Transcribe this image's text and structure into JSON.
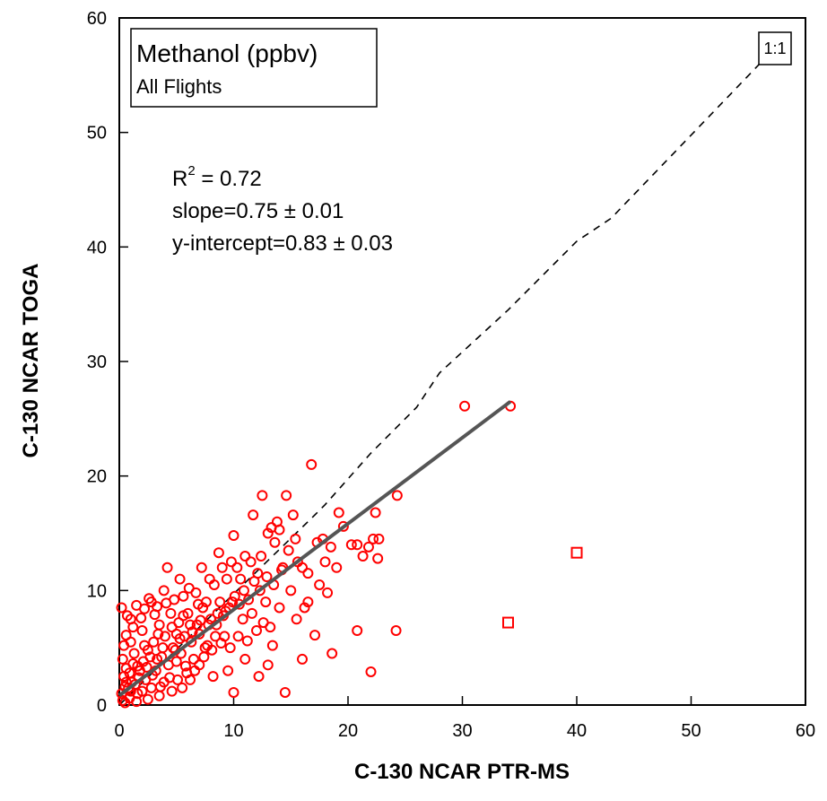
{
  "chart_data": {
    "type": "scatter",
    "title": "Methanol (ppbv)",
    "subtitle": "All Flights",
    "xlabel": "C-130 NCAR PTR-MS",
    "ylabel": "C-130 NCAR TOGA",
    "xlim": [
      0,
      60
    ],
    "ylim": [
      0,
      60
    ],
    "xticks": [
      0,
      10,
      20,
      30,
      40,
      50,
      60
    ],
    "yticks": [
      0,
      10,
      20,
      30,
      40,
      50,
      60
    ],
    "grid": false,
    "stats": {
      "r2_label": "R",
      "r2_sup": "2",
      "r2_value": " = 0.72",
      "slope": "slope=0.75 ± 0.01",
      "intercept": "y-intercept=0.83 ± 0.03"
    },
    "one_to_one_label": "1:1",
    "fit_line": {
      "x": [
        0,
        34.2
      ],
      "y": [
        0.83,
        26.5
      ],
      "color": "#555555"
    },
    "one_to_one_line": {
      "x": [
        0,
        17,
        18,
        22,
        26,
        28,
        34,
        40,
        43,
        56
      ],
      "y": [
        0,
        16.5,
        17.5,
        22,
        26,
        29,
        34.5,
        40.5,
        42.5,
        56
      ],
      "color": "#000000"
    },
    "series": [
      {
        "marker": "circle",
        "color": "#ff0000",
        "points": [
          [
            0.2,
            8.5
          ],
          [
            0.6,
            6.1
          ],
          [
            1.0,
            7.5
          ],
          [
            1.5,
            8.7
          ],
          [
            2.2,
            8.4
          ],
          [
            2.8,
            9.0
          ],
          [
            3.3,
            8.6
          ],
          [
            3.9,
            10.0
          ],
          [
            4.2,
            12.0
          ],
          [
            4.8,
            9.2
          ],
          [
            5.3,
            11.0
          ],
          [
            5.0,
            6.2
          ],
          [
            5.6,
            9.5
          ],
          [
            6.1,
            10.2
          ],
          [
            6.7,
            9.8
          ],
          [
            7.2,
            12.0
          ],
          [
            7.6,
            9.0
          ],
          [
            7.9,
            11.0
          ],
          [
            8.3,
            10.5
          ],
          [
            8.7,
            13.3
          ],
          [
            9.0,
            12.0
          ],
          [
            9.4,
            11.0
          ],
          [
            9.8,
            12.5
          ],
          [
            10.0,
            14.8
          ],
          [
            10.3,
            12.0
          ],
          [
            10.6,
            11.0
          ],
          [
            11.0,
            13.0
          ],
          [
            11.5,
            12.5
          ],
          [
            11.7,
            16.6
          ],
          [
            12.1,
            11.5
          ],
          [
            12.4,
            13.0
          ],
          [
            12.5,
            18.3
          ],
          [
            13.0,
            15.0
          ],
          [
            13.3,
            15.5
          ],
          [
            13.6,
            14.2
          ],
          [
            13.8,
            16.0
          ],
          [
            14.0,
            15.3
          ],
          [
            14.3,
            12.0
          ],
          [
            14.6,
            18.3
          ],
          [
            14.8,
            13.5
          ],
          [
            15.2,
            16.6
          ],
          [
            15.4,
            14.5
          ],
          [
            16.0,
            12.0
          ],
          [
            16.5,
            11.5
          ],
          [
            16.8,
            21.0
          ],
          [
            17.3,
            14.2
          ],
          [
            17.8,
            14.5
          ],
          [
            18.5,
            13.8
          ],
          [
            19.0,
            12.0
          ],
          [
            19.2,
            16.8
          ],
          [
            19.6,
            15.6
          ],
          [
            20.3,
            14.0
          ],
          [
            20.8,
            14.0
          ],
          [
            21.3,
            13.0
          ],
          [
            21.8,
            13.8
          ],
          [
            22.2,
            14.5
          ],
          [
            22.4,
            16.8
          ],
          [
            22.6,
            12.8
          ],
          [
            22.7,
            14.5
          ],
          [
            24.3,
            18.3
          ],
          [
            30.2,
            26.1
          ],
          [
            34.2,
            26.1
          ],
          [
            18.2,
            9.8
          ],
          [
            17.1,
            6.1
          ],
          [
            18.6,
            4.5
          ],
          [
            20.8,
            6.5
          ],
          [
            24.2,
            6.5
          ],
          [
            22.0,
            2.9
          ],
          [
            14.5,
            1.1
          ],
          [
            12.2,
            2.5
          ],
          [
            10.0,
            1.1
          ],
          [
            13.0,
            3.5
          ],
          [
            16.0,
            4.0
          ],
          [
            15.5,
            7.5
          ],
          [
            16.2,
            8.5
          ],
          [
            13.4,
            5.2
          ],
          [
            12.0,
            6.5
          ],
          [
            11.0,
            4.0
          ],
          [
            9.5,
            3.0
          ],
          [
            8.2,
            2.5
          ],
          [
            8.5,
            7.0
          ],
          [
            7.5,
            5.0
          ],
          [
            14.0,
            8.5
          ],
          [
            15.0,
            10.0
          ],
          [
            16.5,
            9.0
          ],
          [
            17.5,
            10.5
          ],
          [
            18.0,
            12.5
          ],
          [
            12.8,
            9.0
          ],
          [
            11.6,
            8.0
          ],
          [
            10.8,
            7.5
          ],
          [
            9.2,
            6.0
          ],
          [
            7.0,
            3.5
          ],
          [
            6.2,
            2.2
          ],
          [
            5.5,
            1.5
          ],
          [
            4.6,
            1.2
          ],
          [
            3.5,
            0.8
          ],
          [
            2.5,
            0.5
          ],
          [
            1.5,
            0.3
          ],
          [
            0.5,
            0.2
          ],
          [
            0.2,
            1.0
          ],
          [
            0.4,
            2.5
          ],
          [
            0.3,
            4.0
          ],
          [
            0.8,
            1.5
          ],
          [
            0.6,
            3.2
          ],
          [
            1.1,
            2.0
          ],
          [
            1.3,
            4.5
          ],
          [
            1.0,
            5.5
          ],
          [
            1.8,
            3.0
          ],
          [
            1.6,
            1.0
          ],
          [
            2.0,
            6.5
          ],
          [
            2.3,
            2.2
          ],
          [
            2.5,
            4.8
          ],
          [
            2.1,
            3.8
          ],
          [
            2.8,
            1.5
          ],
          [
            3.0,
            5.5
          ],
          [
            3.2,
            3.0
          ],
          [
            3.5,
            7.0
          ],
          [
            3.7,
            4.2
          ],
          [
            3.9,
            2.0
          ],
          [
            4.0,
            6.0
          ],
          [
            4.3,
            3.5
          ],
          [
            4.5,
            8.0
          ],
          [
            4.7,
            5.0
          ],
          [
            5.0,
            3.8
          ],
          [
            5.2,
            7.2
          ],
          [
            5.4,
            4.5
          ],
          [
            5.7,
            6.0
          ],
          [
            5.9,
            2.8
          ],
          [
            6.0,
            8.0
          ],
          [
            6.3,
            5.5
          ],
          [
            6.5,
            4.0
          ],
          [
            6.8,
            7.0
          ],
          [
            7.0,
            6.2
          ],
          [
            7.3,
            8.5
          ],
          [
            7.7,
            5.2
          ],
          [
            8.0,
            7.5
          ],
          [
            8.4,
            6.0
          ],
          [
            8.8,
            9.0
          ],
          [
            9.1,
            7.8
          ],
          [
            9.6,
            8.5
          ],
          [
            10.1,
            9.5
          ],
          [
            10.5,
            8.8
          ],
          [
            10.9,
            10.0
          ],
          [
            11.3,
            9.2
          ],
          [
            11.8,
            10.8
          ],
          [
            12.3,
            10.0
          ],
          [
            12.9,
            11.2
          ],
          [
            13.5,
            10.5
          ],
          [
            14.2,
            11.8
          ],
          [
            15.6,
            12.5
          ],
          [
            1.2,
            6.8
          ],
          [
            0.7,
            7.8
          ],
          [
            1.9,
            7.6
          ],
          [
            2.6,
            9.3
          ],
          [
            3.1,
            7.9
          ],
          [
            4.1,
            8.9
          ],
          [
            0.9,
            0.6
          ],
          [
            1.4,
            1.8
          ],
          [
            2.0,
            1.2
          ],
          [
            2.9,
            2.6
          ],
          [
            3.6,
            1.6
          ],
          [
            4.4,
            2.4
          ],
          [
            5.1,
            2.2
          ],
          [
            5.8,
            3.4
          ],
          [
            6.6,
            3.0
          ],
          [
            7.4,
            4.2
          ],
          [
            8.1,
            4.8
          ],
          [
            8.9,
            5.4
          ],
          [
            9.7,
            5.0
          ],
          [
            10.4,
            6.0
          ],
          [
            11.2,
            5.6
          ],
          [
            12.6,
            7.2
          ],
          [
            13.2,
            6.8
          ],
          [
            0.3,
            0.4
          ],
          [
            0.5,
            1.6
          ],
          [
            0.9,
            2.8
          ],
          [
            1.7,
            2.4
          ],
          [
            2.4,
            3.3
          ],
          [
            3.3,
            4.0
          ],
          [
            4.9,
            4.8
          ],
          [
            6.4,
            6.4
          ],
          [
            7.8,
            7.0
          ],
          [
            9.3,
            8.2
          ],
          [
            0.4,
            5.2
          ],
          [
            1.2,
            3.6
          ],
          [
            2.2,
            5.2
          ],
          [
            3.4,
            6.2
          ],
          [
            4.6,
            6.8
          ],
          [
            5.6,
            7.8
          ],
          [
            6.9,
            8.8
          ],
          [
            0.6,
            2.0
          ],
          [
            1.0,
            1.2
          ],
          [
            1.6,
            3.4
          ],
          [
            2.7,
            4.2
          ],
          [
            3.8,
            5.0
          ],
          [
            5.3,
            5.8
          ],
          [
            6.2,
            7.0
          ],
          [
            7.1,
            7.4
          ],
          [
            8.6,
            8.0
          ],
          [
            9.9,
            9.0
          ]
        ]
      },
      {
        "marker": "square",
        "color": "#ff0000",
        "points": [
          [
            34.0,
            7.2
          ],
          [
            40.0,
            13.3
          ]
        ]
      }
    ]
  }
}
